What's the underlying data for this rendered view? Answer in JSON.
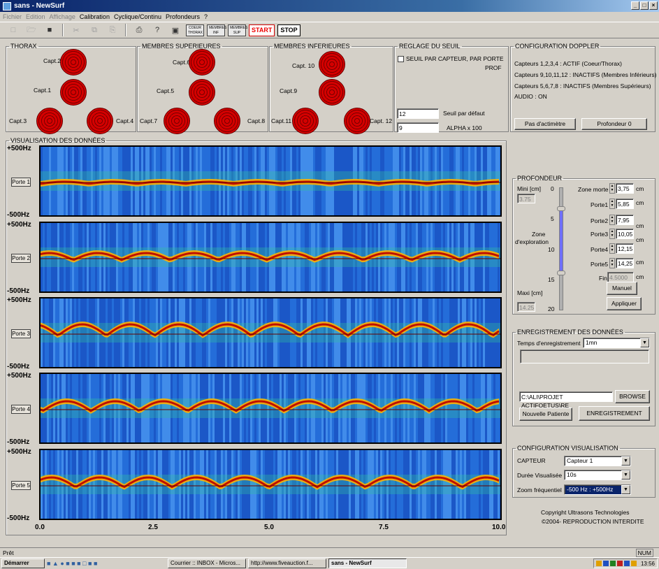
{
  "window": {
    "title": "sans - NewSurf",
    "controls": [
      "_",
      "×",
      "□"
    ]
  },
  "menu": [
    {
      "label": "Fichier",
      "enabled": false
    },
    {
      "label": "Edition",
      "enabled": false
    },
    {
      "label": "Affichage",
      "enabled": false
    },
    {
      "label": "Calibration",
      "enabled": true
    },
    {
      "label": "Cyclique/Continu",
      "enabled": true
    },
    {
      "label": "Profondeurs",
      "enabled": true
    },
    {
      "label": "?",
      "enabled": true
    }
  ],
  "toolbar": {
    "coeur_thorax": "COEUR THORAX",
    "membres_inf": "MEMBRES INF",
    "membres_sup": "MEMBRES SUP",
    "start": "START",
    "stop": "STOP"
  },
  "thorax": {
    "legend": "THORAX",
    "capt1": "Capt.1",
    "capt2": "Capt.2",
    "capt3": "Capt.3",
    "capt4": "Capt.4"
  },
  "membres_sup": {
    "legend": "MEMBRES SUPERIEURES",
    "capt5": "Capt.5",
    "capt6": "Capt.6",
    "capt7": "Capt.7",
    "capt8": "Capt.8"
  },
  "membres_inf": {
    "legend": "MEMBRES INFERIEURES",
    "capt9": "Capt.9",
    "capt10": "Capt. 10",
    "capt11": "Capt.11",
    "capt12": "Capt. 12"
  },
  "seuil": {
    "legend": "REGLAGE DU SEUIL",
    "checkbox_label": "SEUIL PAR CAPTEUR, PAR PORTE",
    "prof": "PROF",
    "seuil_value": "12",
    "seuil_label": "Seuil par défaut",
    "alpha_value": "9",
    "alpha_label": "ALPHA x 100"
  },
  "doppler": {
    "legend": "CONFIGURATION DOPPLER",
    "line1": "Capteurs 1,2,3,4 : ACTIF (Coeur/Thorax)",
    "line2": "Capteurs 9,10,11,12 : INACTIFS (Membres Inférieurs)",
    "line3": "Capteurs 5,6,7,8 : INACTIFS (Membres Supérieurs)",
    "line4": "AUDIO : ON",
    "btn_actimetre": "Pas d'actimètre",
    "btn_profondeur": "Profondeur 0"
  },
  "visualisation": {
    "legend": "VISUALISATION DES DONNÉES",
    "freq_top": "+500Hz",
    "freq_bottom": "-500Hz",
    "channels": [
      "Porte 1",
      "Porte 2",
      "Porte 3",
      "Porte 4",
      "Porte 5"
    ],
    "x_ticks": [
      "0.0",
      "2.5",
      "5.0",
      "7.5",
      "10.0"
    ]
  },
  "profondeur": {
    "legend": "PROFONDEUR",
    "mini_label": "Mini [cm]",
    "mini_value": "3.75",
    "zone_label": "Zone",
    "exploration_label": "d'exploration",
    "maxi_label": "Maxi [cm]",
    "maxi_value": "14.25",
    "scale": [
      "0",
      "5",
      "10",
      "15",
      "20"
    ],
    "zone_morte_label": "Zone morte",
    "zone_morte_value": "3,75",
    "porte1_label": "Porte1",
    "porte1_value": "5,85",
    "porte2_label": "Porte2",
    "porte2_value": "7,95",
    "porte3_label": "Porte3",
    "porte3_value": "10,05",
    "porte4_label": "Porte4",
    "porte4_value": "12,15",
    "porte5_label": "Porte5",
    "porte5_value": "14,25",
    "fin_label": "Fin",
    "fin_value": "4.5000",
    "unit": "cm",
    "btn_manuel": "Manuel",
    "btn_appliquer": "Appliquer"
  },
  "enregistrement": {
    "legend": "ENREGISTREMENT DES DONNÉES",
    "temps_label": "Temps d'enregistrement",
    "temps_value": "1mn",
    "path": "C:\\ALI\\PROJET ACTIFOETUS\\RE",
    "btn_browse": "BROWSE",
    "btn_nouvelle": "Nouvelle Patiente",
    "btn_enreg": "ENREGISTREMENT"
  },
  "config_visu": {
    "legend": "CONFIGURATION VISUALISATION",
    "capteur_label": "CAPTEUR",
    "capteur_value": "Capteur 1",
    "duree_label": "Durée Visualisée",
    "duree_value": "10s",
    "zoom_label": "Zoom fréquentiel",
    "zoom_value": "-500 Hz : +500Hz"
  },
  "copyright": {
    "line1": "Copyright Ultrasons Technologies",
    "line2": "©2004- REPRODUCTION INTERDITE"
  },
  "status": {
    "left": "Prêt",
    "right": "NUM"
  },
  "taskbar": {
    "start": "Démarrer",
    "tasks": [
      "Courrier :: INBOX - Micros...",
      "http://www.fiveauction.f...",
      "sans - NewSurf"
    ],
    "clock": "13:56"
  },
  "colors": {
    "accent_title": "#0a246a",
    "sensor_red": "#d40000",
    "spectrogram_bg": "#1e5fd0"
  }
}
